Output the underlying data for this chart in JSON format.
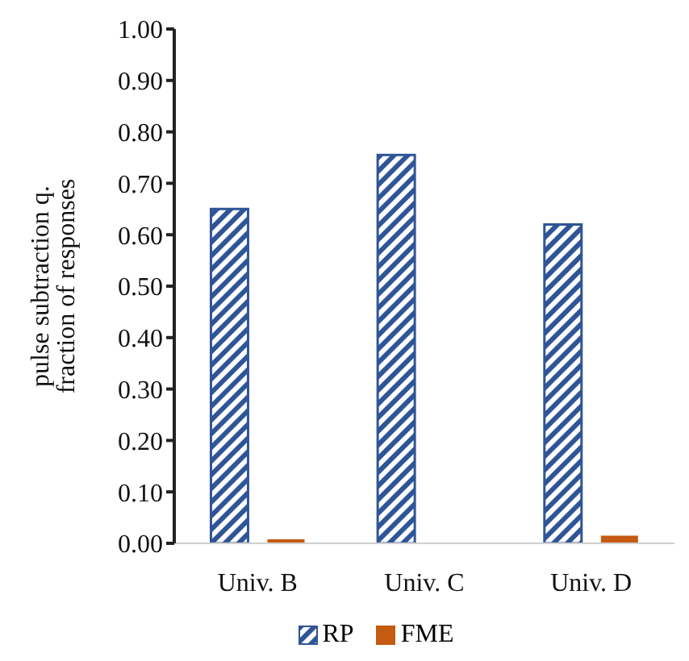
{
  "chart_data": {
    "type": "bar",
    "ylabel": "pulse subtraction q.\nfraction of responses",
    "categories": [
      "Univ. B",
      "Univ. C",
      "Univ. D"
    ],
    "series": [
      {
        "name": "RP",
        "color": "#2f5597",
        "values": [
          0.65,
          0.755,
          0.62
        ]
      },
      {
        "name": "FME",
        "color": "#c55a11",
        "values": [
          0.008,
          0,
          0.015
        ]
      }
    ],
    "ylim": [
      0,
      1
    ],
    "yticks": [
      {
        "value": 0,
        "label": "0.00"
      },
      {
        "value": 0.1,
        "label": "0.10"
      },
      {
        "value": 0.2,
        "label": "0.20"
      },
      {
        "value": 0.3,
        "label": "0.30"
      },
      {
        "value": 0.4,
        "label": "0.40"
      },
      {
        "value": 0.5,
        "label": "0.50"
      },
      {
        "value": 0.6,
        "label": "0.60"
      },
      {
        "value": 0.7,
        "label": "0.70"
      },
      {
        "value": 0.8,
        "label": "0.80"
      },
      {
        "value": 0.9,
        "label": "0.90"
      },
      {
        "value": 1,
        "label": "1.00"
      }
    ],
    "grid": false,
    "legend": "bottom"
  }
}
